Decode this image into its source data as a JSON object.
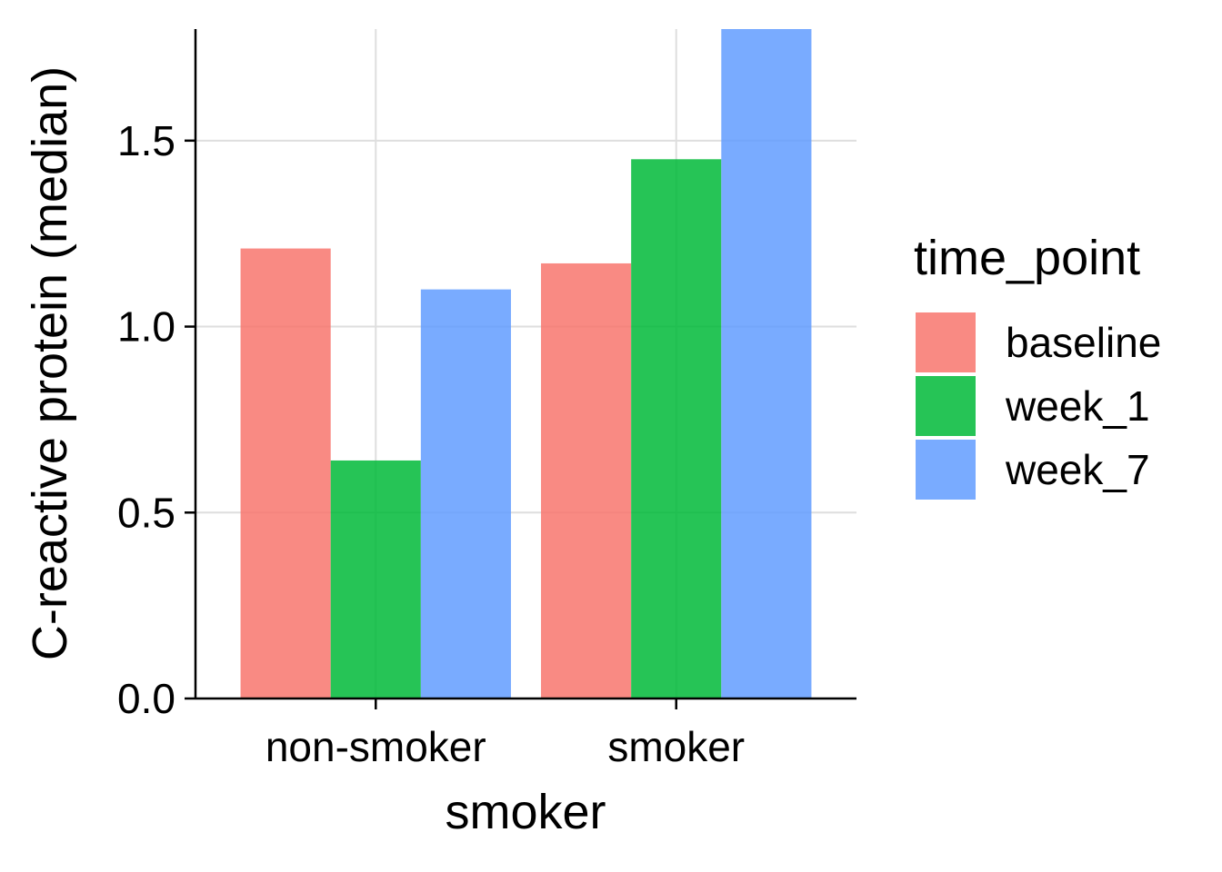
{
  "chart_data": {
    "type": "bar",
    "categories": [
      "non-smoker",
      "smoker"
    ],
    "series": [
      {
        "name": "baseline",
        "values": [
          1.21,
          1.17
        ],
        "color": "#F8766D"
      },
      {
        "name": "week_1",
        "values": [
          0.64,
          1.45
        ],
        "color": "#00BA38"
      },
      {
        "name": "week_7",
        "values": [
          1.1,
          1.8
        ],
        "color": "#619CFF"
      }
    ],
    "xlabel": "smoker",
    "ylabel": "C-reactive protein (median)",
    "ylim": [
      0,
      1.8
    ],
    "yticks": [
      0.0,
      0.5,
      1.0,
      1.5
    ],
    "ytick_labels": [
      "0.0",
      "0.5",
      "1.0",
      "1.5"
    ],
    "legend_title": "time_point",
    "legend_position": "right",
    "grid": true
  }
}
